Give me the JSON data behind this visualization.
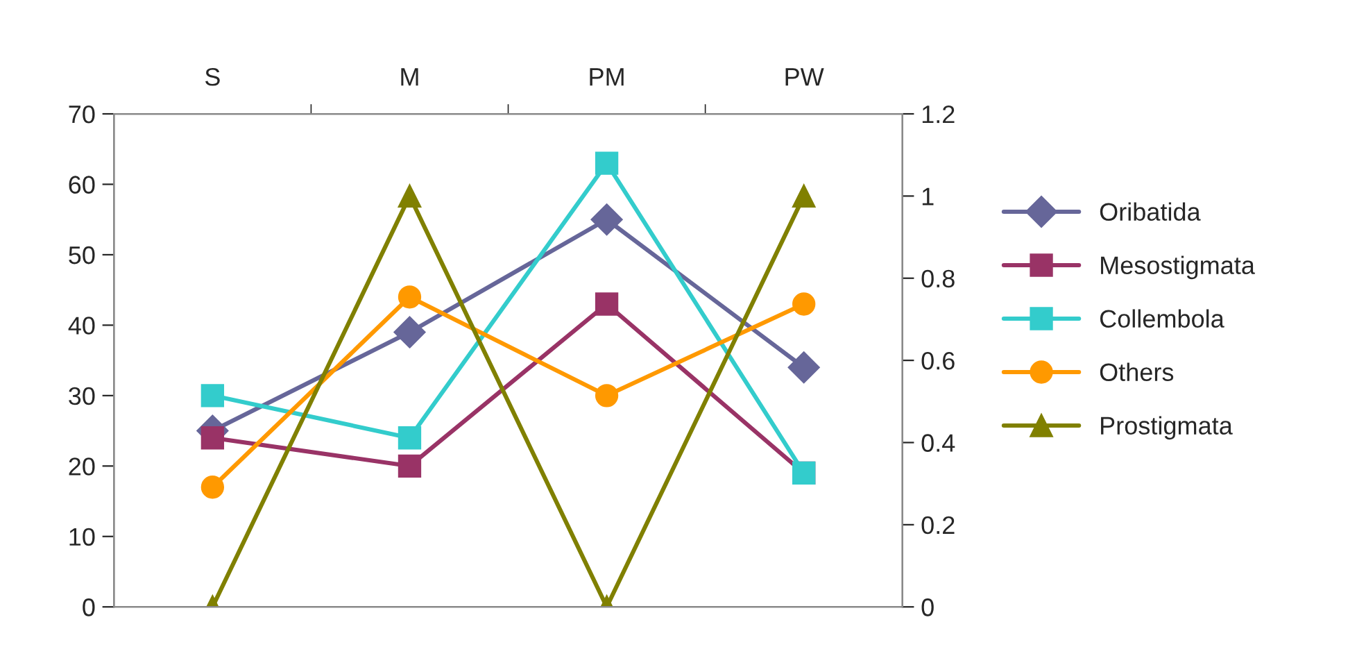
{
  "chart_data": {
    "type": "line",
    "categories": [
      "S",
      "M",
      "PM",
      "PW"
    ],
    "series": [
      {
        "name": "Oribatida",
        "color": "#666699",
        "marker": "diamond",
        "values": [
          25,
          39,
          55,
          34
        ]
      },
      {
        "name": "Mesostigmata",
        "color": "#993366",
        "marker": "square",
        "values": [
          24,
          20,
          43,
          19
        ]
      },
      {
        "name": "Collembola",
        "color": "#33cccc",
        "marker": "square",
        "values": [
          30,
          24,
          63,
          19
        ]
      },
      {
        "name": "Others",
        "color": "#ff9900",
        "marker": "circle",
        "values": [
          17,
          44,
          30,
          43
        ]
      },
      {
        "name": "Prostigmata",
        "color": "#808000",
        "marker": "triangle",
        "axis": "y2",
        "values": [
          0,
          1,
          0,
          1
        ]
      }
    ],
    "ylim": [
      0,
      70
    ],
    "yticks": [
      0,
      10,
      20,
      30,
      40,
      50,
      60,
      70
    ],
    "y2lim": [
      0,
      1.2
    ],
    "y2ticks": [
      0,
      0.2,
      0.4,
      0.6,
      0.8,
      1,
      1.2
    ],
    "grid": false,
    "legend": "right"
  }
}
